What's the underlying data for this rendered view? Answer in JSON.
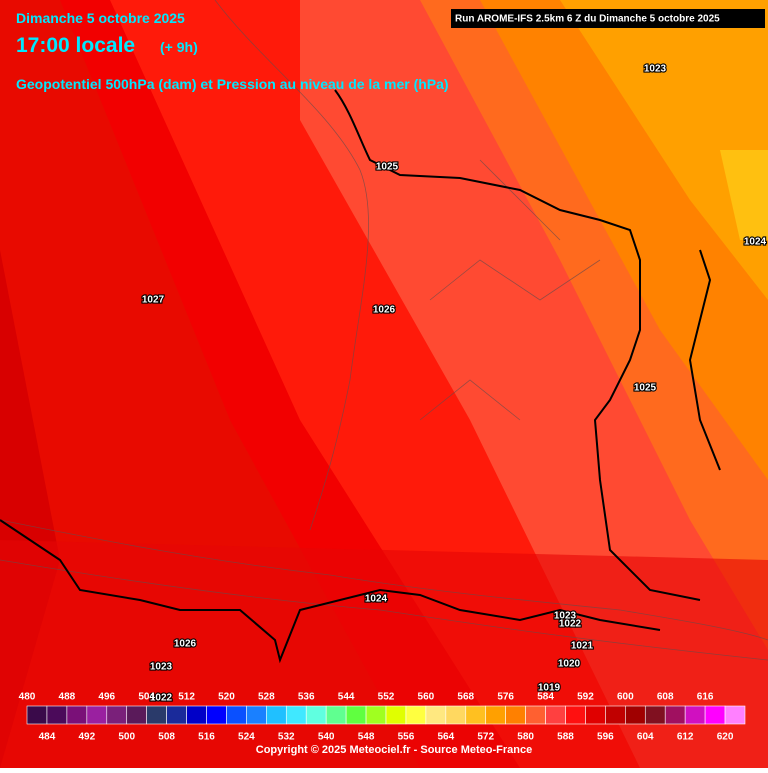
{
  "header": {
    "date": "Dimanche 5 octobre 2025",
    "time": "17:00 locale",
    "offset": "(+ 9h)",
    "product": "Geopotentiel 500hPa (dam) et Pression au niveau de la mer (hPa)",
    "run": "Run AROME-IFS 2.5km 6 Z du Dimanche 5 octobre 2025"
  },
  "isobar_labels": [
    "1023",
    "1024",
    "1025",
    "1027",
    "1026",
    "1025",
    "1024",
    "1023",
    "1022",
    "1021",
    "1020",
    "1019",
    "1026",
    "1023",
    "1022"
  ],
  "scale": {
    "top_labels": [
      480,
      488,
      496,
      504,
      512,
      520,
      528,
      536,
      544,
      552,
      560,
      568,
      576,
      584,
      592,
      600,
      608,
      616
    ],
    "bottom_labels": [
      484,
      492,
      500,
      508,
      516,
      524,
      532,
      540,
      548,
      556,
      564,
      572,
      580,
      588,
      596,
      604,
      612,
      620
    ],
    "colors": [
      "#3a0a4a",
      "#4b0a5a",
      "#7a1078",
      "#9a20a0",
      "#7a207a",
      "#5a1a5a",
      "#2a3a6a",
      "#1a2a9a",
      "#0000c8",
      "#0000ff",
      "#0a50ff",
      "#1a80ff",
      "#20c0ff",
      "#40e8ff",
      "#60ffe0",
      "#60ff90",
      "#60ff40",
      "#a0ff20",
      "#e0ff00",
      "#ffff40",
      "#ffe880",
      "#ffd860",
      "#ffc020",
      "#ffa000",
      "#ff8000",
      "#ff6030",
      "#ff4040",
      "#ff1010",
      "#e00000",
      "#c00000",
      "#a00000",
      "#801020",
      "#a01060",
      "#d010c0",
      "#ff00ff",
      "#ff80ff"
    ]
  },
  "footer": {
    "copyright": "Copyright © 2025 Meteociel.fr - Source Meteo-France"
  }
}
